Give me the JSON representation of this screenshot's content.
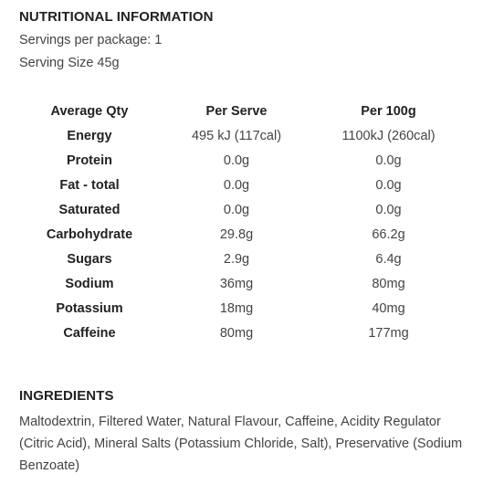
{
  "nutrition": {
    "heading": "NUTRITIONAL INFORMATION",
    "servings_per_package": "Servings per package: 1",
    "serving_size": "Serving Size 45g",
    "columns": [
      "Average Qty",
      "Per Serve",
      "Per 100g"
    ],
    "rows": [
      {
        "name": "Energy",
        "per_serve": "495 kJ (117cal)",
        "per_100g": "1100kJ (260cal)"
      },
      {
        "name": "Protein",
        "per_serve": "0.0g",
        "per_100g": "0.0g"
      },
      {
        "name": "Fat - total",
        "per_serve": "0.0g",
        "per_100g": "0.0g"
      },
      {
        "name": "Saturated",
        "per_serve": "0.0g",
        "per_100g": "0.0g"
      },
      {
        "name": "Carbohydrate",
        "per_serve": "29.8g",
        "per_100g": "66.2g"
      },
      {
        "name": "Sugars",
        "per_serve": "2.9g",
        "per_100g": "6.4g"
      },
      {
        "name": "Sodium",
        "per_serve": "36mg",
        "per_100g": "80mg"
      },
      {
        "name": "Potassium",
        "per_serve": "18mg",
        "per_100g": "40mg"
      },
      {
        "name": "Caffeine",
        "per_serve": "80mg",
        "per_100g": "177mg"
      }
    ]
  },
  "ingredients": {
    "heading": "INGREDIENTS",
    "text": "Maltodextrin, Filtered Water, Natural Flavour, Caffeine, Acidity Regulator (Citric Acid), Mineral Salts (Potassium Chloride, Salt), Preservative (Sodium Benzoate)"
  }
}
